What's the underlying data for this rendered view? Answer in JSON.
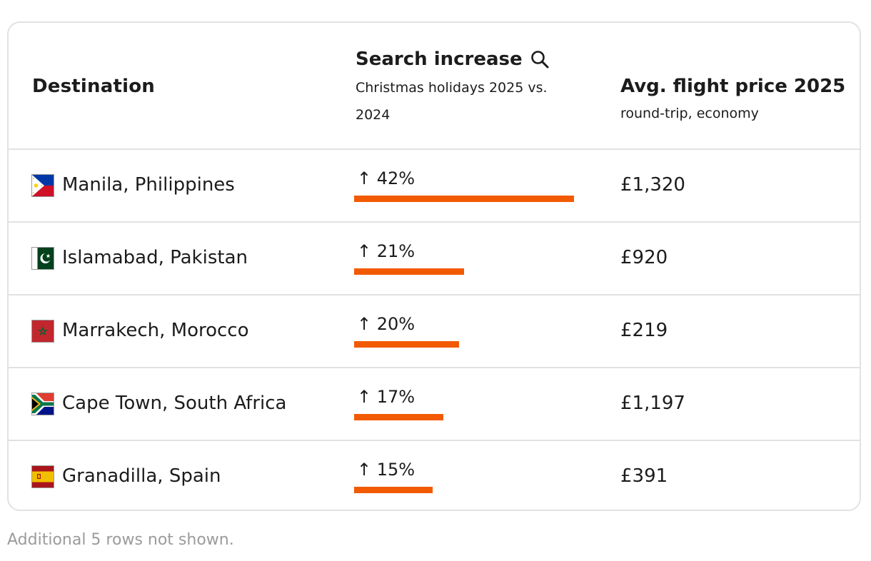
{
  "table": {
    "headers": {
      "destination": "Destination",
      "search_title": "Search increase",
      "search_subtitle": "Christmas holidays 2025 vs. 2024",
      "price_title": "Avg. flight price 2025",
      "price_subtitle": "round-trip, economy"
    },
    "rows": [
      {
        "flag_icon": "philippines-flag-icon",
        "destination": "Manila, Philippines",
        "increase_label": "↑ 42%",
        "increase_pct": 42,
        "price": "£1,320"
      },
      {
        "flag_icon": "pakistan-flag-icon",
        "destination": "Islamabad, Pakistan",
        "increase_label": "↑ 21%",
        "increase_pct": 21,
        "price": "£920"
      },
      {
        "flag_icon": "morocco-flag-icon",
        "destination": "Marrakech, Morocco",
        "increase_label": "↑ 20%",
        "increase_pct": 20,
        "price": "£219"
      },
      {
        "flag_icon": "south-africa-flag-icon",
        "destination": "Cape Town, South Africa",
        "increase_label": "↑ 17%",
        "increase_pct": 17,
        "price": "£1,197"
      },
      {
        "flag_icon": "spain-flag-icon",
        "destination": "Granadilla, Spain",
        "increase_label": "↑ 15%",
        "increase_pct": 15,
        "price": "£391"
      }
    ],
    "footnote": "Additional 5 rows not shown."
  },
  "colors": {
    "bar": "#f25a00",
    "border": "#e2e2e2",
    "footnote": "#9b9b9b"
  }
}
